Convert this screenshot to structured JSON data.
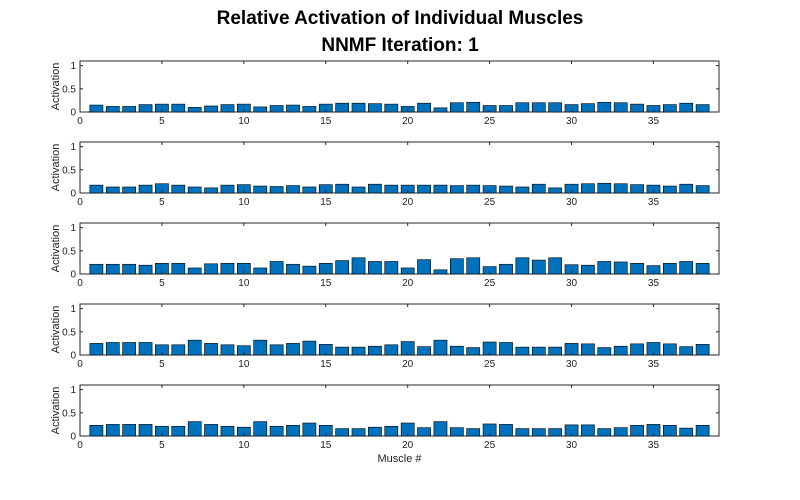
{
  "figure": {
    "title_line1": "Relative Activation of Individual Muscles",
    "title_line2": "NNMF Iteration: 1"
  },
  "colors": {
    "bar_fill": "#0072BD",
    "bar_edge": "#000000",
    "axis": "#262626"
  },
  "chart_data": [
    {
      "type": "bar",
      "ylabel": "Activation",
      "xlabel": "",
      "xlim": [
        0,
        39
      ],
      "ylim": [
        0,
        1.1
      ],
      "xticks": [
        0,
        5,
        10,
        15,
        20,
        25,
        30,
        35
      ],
      "yticks": [
        0,
        0.5,
        1
      ],
      "categories": [
        1,
        2,
        3,
        4,
        5,
        6,
        7,
        8,
        9,
        10,
        11,
        12,
        13,
        14,
        15,
        16,
        17,
        18,
        19,
        20,
        21,
        22,
        23,
        24,
        25,
        26,
        27,
        28,
        29,
        30,
        31,
        32,
        33,
        34,
        35,
        36,
        37,
        38
      ],
      "values": [
        0.15,
        0.12,
        0.12,
        0.16,
        0.17,
        0.17,
        0.1,
        0.13,
        0.16,
        0.17,
        0.11,
        0.14,
        0.15,
        0.12,
        0.17,
        0.19,
        0.19,
        0.18,
        0.17,
        0.12,
        0.19,
        0.09,
        0.2,
        0.21,
        0.14,
        0.14,
        0.2,
        0.2,
        0.2,
        0.16,
        0.18,
        0.21,
        0.2,
        0.17,
        0.14,
        0.16,
        0.19,
        0.16
      ]
    },
    {
      "type": "bar",
      "ylabel": "Activation",
      "xlabel": "",
      "xlim": [
        0,
        39
      ],
      "ylim": [
        0,
        1.1
      ],
      "xticks": [
        0,
        5,
        10,
        15,
        20,
        25,
        30,
        35
      ],
      "yticks": [
        0,
        0.5,
        1
      ],
      "categories": [
        1,
        2,
        3,
        4,
        5,
        6,
        7,
        8,
        9,
        10,
        11,
        12,
        13,
        14,
        15,
        16,
        17,
        18,
        19,
        20,
        21,
        22,
        23,
        24,
        25,
        26,
        27,
        28,
        29,
        30,
        31,
        32,
        33,
        34,
        35,
        36,
        37,
        38
      ],
      "values": [
        0.17,
        0.13,
        0.13,
        0.17,
        0.2,
        0.17,
        0.13,
        0.11,
        0.17,
        0.18,
        0.15,
        0.14,
        0.16,
        0.13,
        0.18,
        0.19,
        0.13,
        0.19,
        0.17,
        0.17,
        0.17,
        0.17,
        0.16,
        0.17,
        0.16,
        0.15,
        0.13,
        0.19,
        0.11,
        0.19,
        0.2,
        0.21,
        0.2,
        0.18,
        0.17,
        0.15,
        0.19,
        0.16
      ]
    },
    {
      "type": "bar",
      "ylabel": "Activation",
      "xlabel": "",
      "xlim": [
        0,
        39
      ],
      "ylim": [
        0,
        1.1
      ],
      "xticks": [
        0,
        5,
        10,
        15,
        20,
        25,
        30,
        35
      ],
      "yticks": [
        0,
        0.5,
        1
      ],
      "categories": [
        1,
        2,
        3,
        4,
        5,
        6,
        7,
        8,
        9,
        10,
        11,
        12,
        13,
        14,
        15,
        16,
        17,
        18,
        19,
        20,
        21,
        22,
        23,
        24,
        25,
        26,
        27,
        28,
        29,
        30,
        31,
        32,
        33,
        34,
        35,
        36,
        37,
        38
      ],
      "values": [
        0.21,
        0.21,
        0.21,
        0.19,
        0.23,
        0.23,
        0.13,
        0.22,
        0.23,
        0.23,
        0.13,
        0.27,
        0.21,
        0.17,
        0.23,
        0.29,
        0.35,
        0.27,
        0.27,
        0.13,
        0.31,
        0.09,
        0.33,
        0.35,
        0.16,
        0.21,
        0.35,
        0.3,
        0.35,
        0.2,
        0.19,
        0.27,
        0.26,
        0.23,
        0.18,
        0.23,
        0.27,
        0.23
      ]
    },
    {
      "type": "bar",
      "ylabel": "Activation",
      "xlabel": "",
      "xlim": [
        0,
        39
      ],
      "ylim": [
        0,
        1.1
      ],
      "xticks": [
        0,
        5,
        10,
        15,
        20,
        25,
        30,
        35
      ],
      "yticks": [
        0,
        0.5,
        1
      ],
      "categories": [
        1,
        2,
        3,
        4,
        5,
        6,
        7,
        8,
        9,
        10,
        11,
        12,
        13,
        14,
        15,
        16,
        17,
        18,
        19,
        20,
        21,
        22,
        23,
        24,
        25,
        26,
        27,
        28,
        29,
        30,
        31,
        32,
        33,
        34,
        35,
        36,
        37,
        38
      ],
      "values": [
        0.25,
        0.27,
        0.27,
        0.27,
        0.22,
        0.22,
        0.32,
        0.25,
        0.22,
        0.2,
        0.32,
        0.22,
        0.25,
        0.3,
        0.23,
        0.17,
        0.17,
        0.19,
        0.22,
        0.29,
        0.18,
        0.32,
        0.19,
        0.16,
        0.28,
        0.27,
        0.17,
        0.17,
        0.17,
        0.25,
        0.24,
        0.16,
        0.19,
        0.24,
        0.27,
        0.24,
        0.18,
        0.23
      ]
    },
    {
      "type": "bar",
      "ylabel": "Activation",
      "xlabel": "Muscle #",
      "xlim": [
        0,
        39
      ],
      "ylim": [
        0,
        1.1
      ],
      "xticks": [
        0,
        5,
        10,
        15,
        20,
        25,
        30,
        35
      ],
      "yticks": [
        0,
        0.5,
        1
      ],
      "categories": [
        1,
        2,
        3,
        4,
        5,
        6,
        7,
        8,
        9,
        10,
        11,
        12,
        13,
        14,
        15,
        16,
        17,
        18,
        19,
        20,
        21,
        22,
        23,
        24,
        25,
        26,
        27,
        28,
        29,
        30,
        31,
        32,
        33,
        34,
        35,
        36,
        37,
        38
      ],
      "values": [
        0.23,
        0.25,
        0.25,
        0.25,
        0.21,
        0.21,
        0.31,
        0.25,
        0.21,
        0.19,
        0.31,
        0.21,
        0.23,
        0.28,
        0.23,
        0.16,
        0.16,
        0.19,
        0.21,
        0.28,
        0.18,
        0.31,
        0.18,
        0.16,
        0.26,
        0.25,
        0.16,
        0.16,
        0.16,
        0.24,
        0.24,
        0.16,
        0.18,
        0.23,
        0.25,
        0.23,
        0.17,
        0.23
      ]
    }
  ]
}
